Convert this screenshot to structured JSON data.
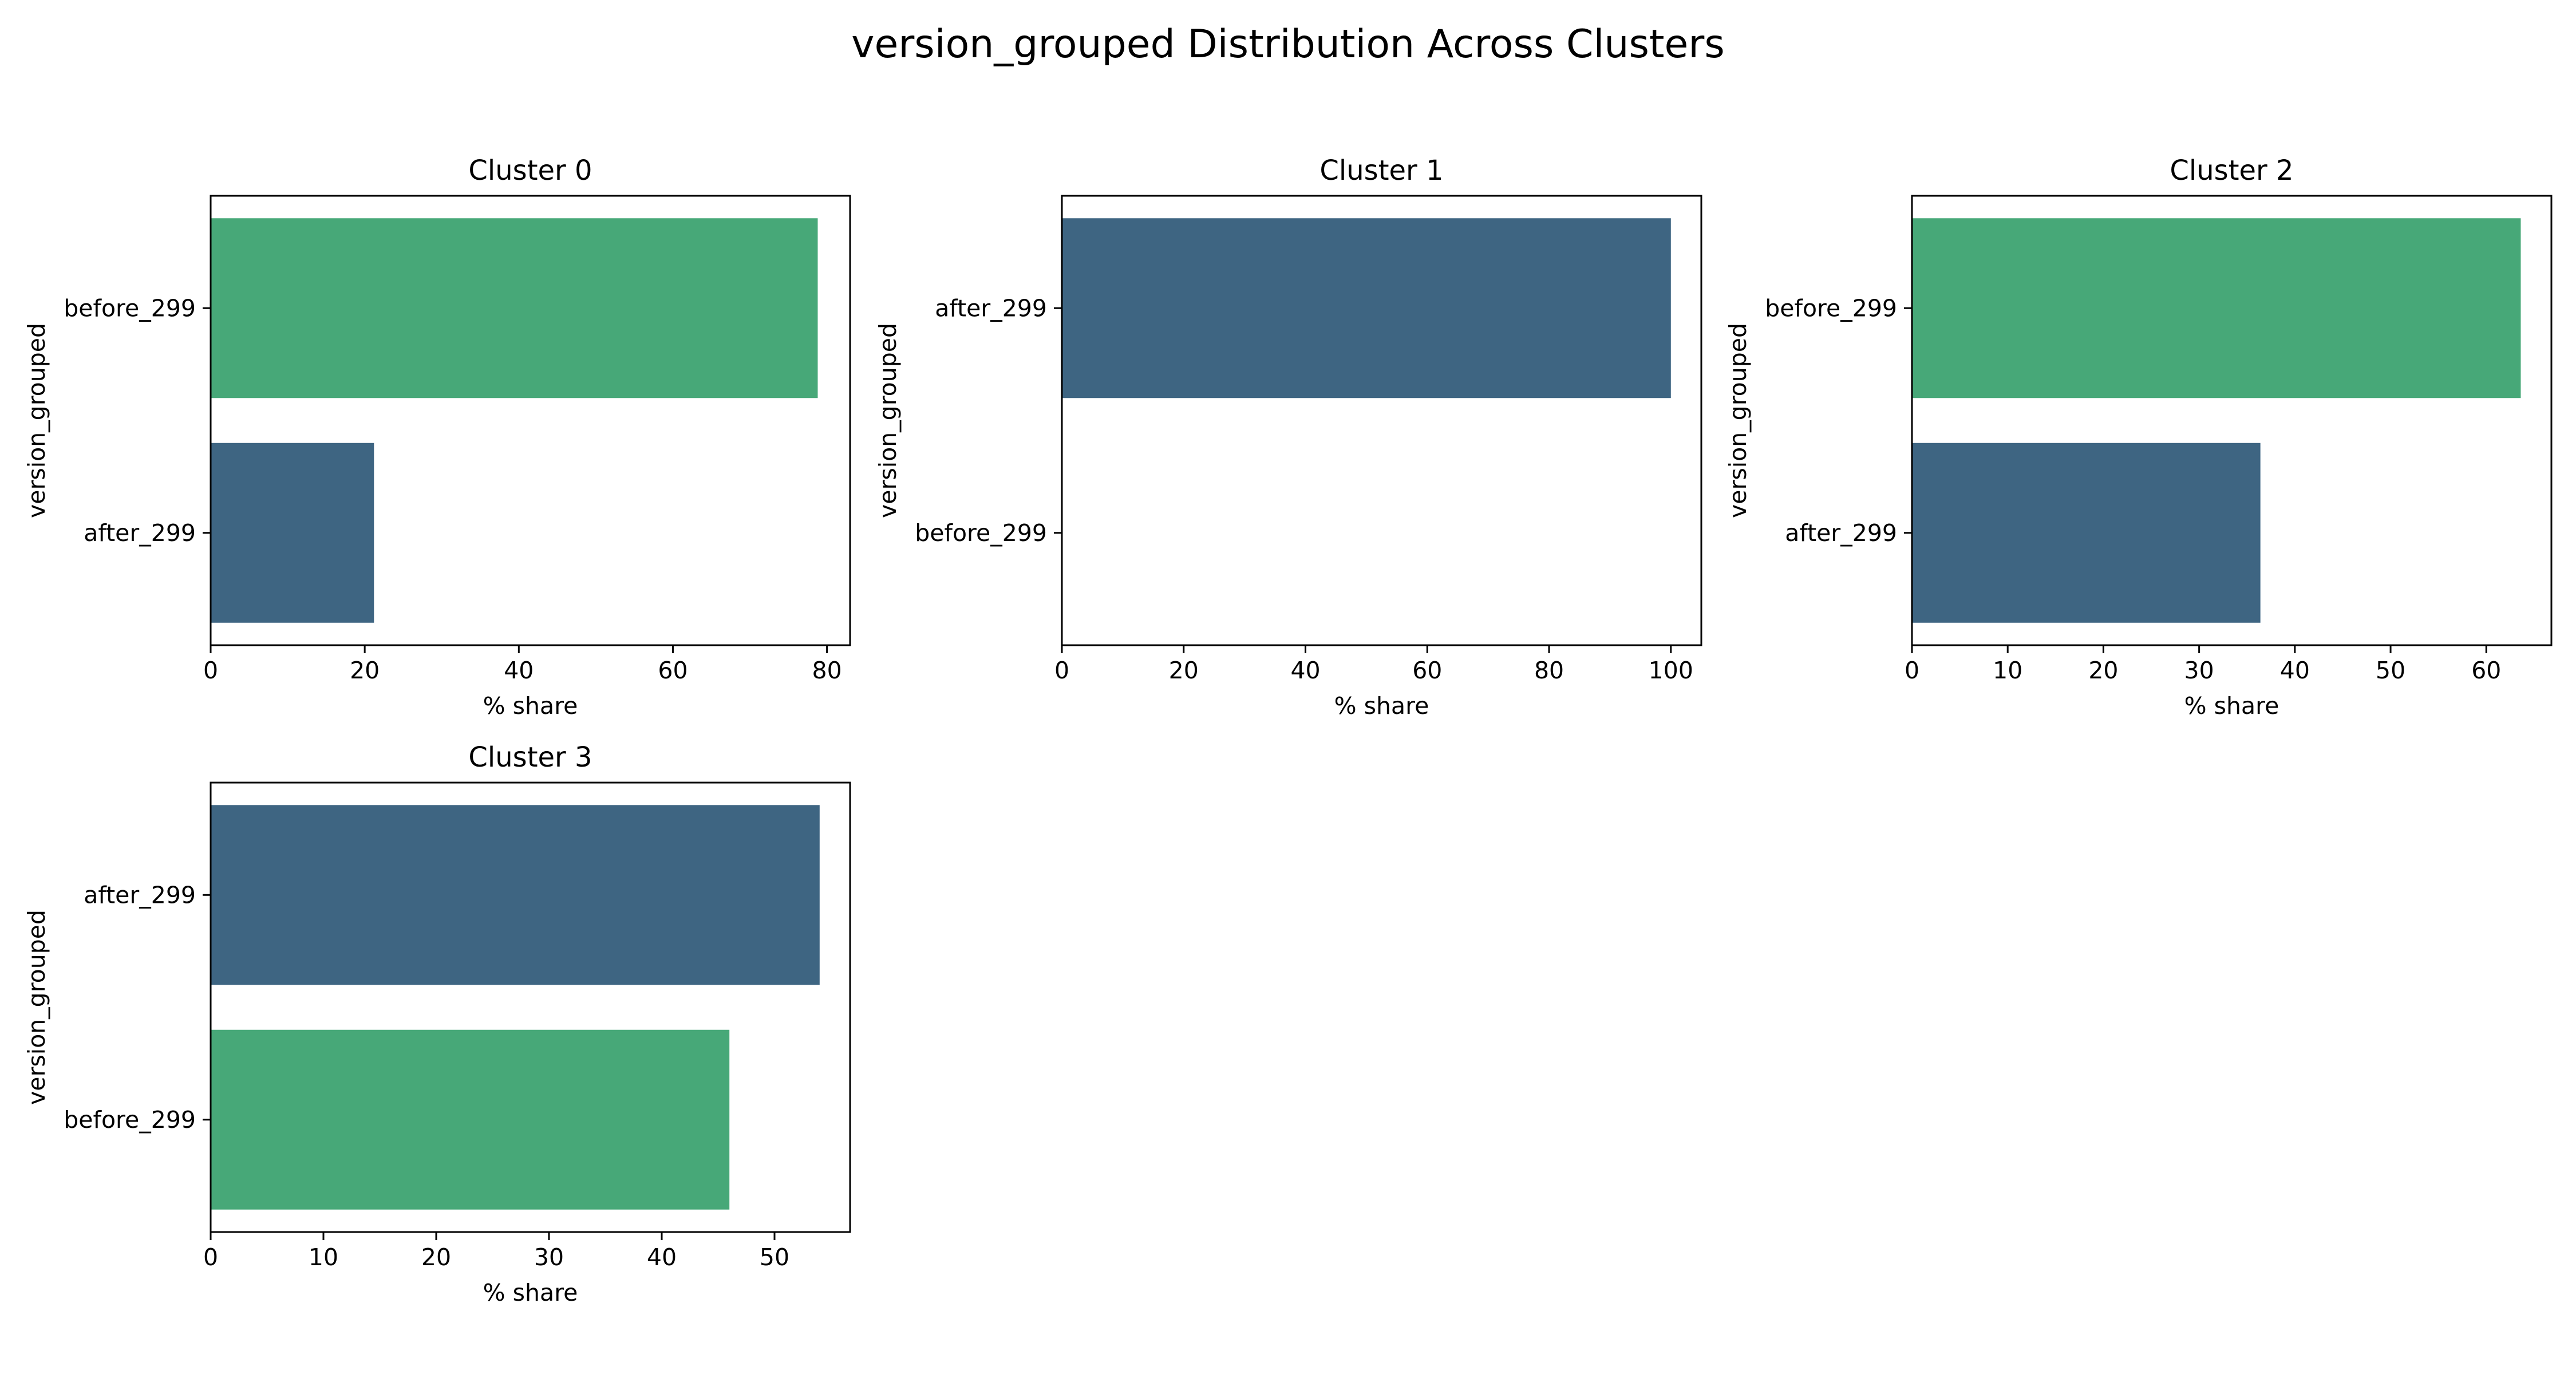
{
  "page_title": "version_grouped Distribution Across Clusters",
  "colors": {
    "before_299": "#47a878",
    "after_299": "#3e6582",
    "axis": "#000000",
    "background": "#ffffff"
  },
  "chart_data": [
    {
      "type": "bar",
      "orientation": "horizontal",
      "title": "Cluster 0",
      "xlabel": "% share",
      "ylabel": "version_grouped",
      "categories": [
        "before_299",
        "after_299"
      ],
      "values": [
        78.8,
        21.2
      ],
      "xlim": [
        0,
        83
      ],
      "xticks": [
        0,
        20,
        40,
        60,
        80
      ],
      "grid": false
    },
    {
      "type": "bar",
      "orientation": "horizontal",
      "title": "Cluster 1",
      "xlabel": "% share",
      "ylabel": "version_grouped",
      "categories": [
        "after_299",
        "before_299"
      ],
      "values": [
        100,
        0
      ],
      "xlim": [
        0,
        105
      ],
      "xticks": [
        0,
        20,
        40,
        60,
        80,
        100
      ],
      "grid": false
    },
    {
      "type": "bar",
      "orientation": "horizontal",
      "title": "Cluster 2",
      "xlabel": "% share",
      "ylabel": "version_grouped",
      "categories": [
        "before_299",
        "after_299"
      ],
      "values": [
        63.6,
        36.4
      ],
      "xlim": [
        0,
        66.8
      ],
      "xticks": [
        0,
        10,
        20,
        30,
        40,
        50,
        60
      ],
      "grid": false
    },
    {
      "type": "bar",
      "orientation": "horizontal",
      "title": "Cluster 3",
      "xlabel": "% share",
      "ylabel": "version_grouped",
      "categories": [
        "after_299",
        "before_299"
      ],
      "values": [
        54.0,
        46.0
      ],
      "xlim": [
        0,
        56.7
      ],
      "xticks": [
        0,
        10,
        20,
        30,
        40,
        50
      ],
      "grid": false
    }
  ]
}
